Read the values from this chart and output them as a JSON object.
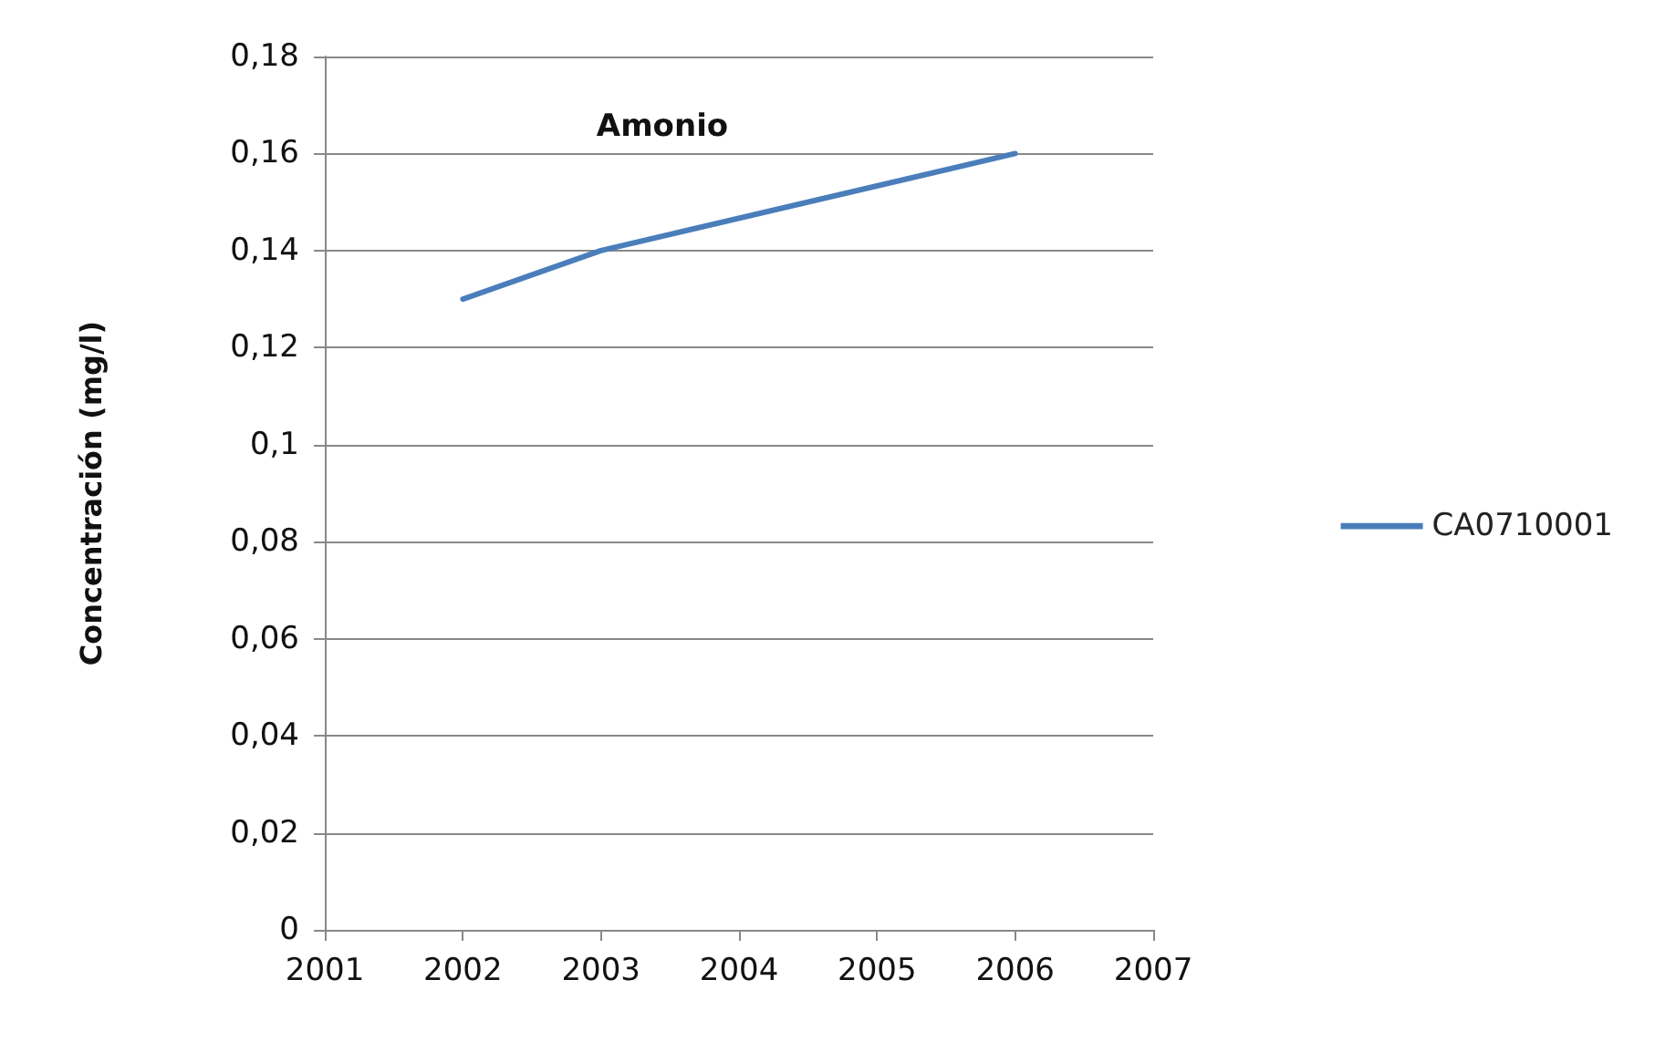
{
  "chart_data": {
    "type": "line",
    "title": "Amonio",
    "ylabel": "Concentración (mg/l)",
    "x": [
      2002,
      2003,
      2006
    ],
    "series": [
      {
        "name": "CA0710001",
        "color": "#4a7ebb",
        "values": [
          0.13,
          0.14,
          0.16
        ]
      }
    ],
    "xlim": [
      2001,
      2007
    ],
    "xticks": [
      2001,
      2002,
      2003,
      2004,
      2005,
      2006,
      2007
    ],
    "ylim": [
      0,
      0.18
    ],
    "yticks": [
      0,
      {
        "value": 0.02,
        "label": "0,02"
      },
      {
        "value": 0.04,
        "label": "0,04"
      },
      {
        "value": 0.06,
        "label": "0,06"
      },
      {
        "value": 0.08,
        "label": "0,08"
      },
      {
        "value": 0.1,
        "label": "0,1"
      },
      {
        "value": 0.12,
        "label": "0,12"
      },
      {
        "value": 0.14,
        "label": "0,14"
      },
      {
        "value": 0.16,
        "label": "0,16"
      },
      {
        "value": 0.18,
        "label": "0,18"
      }
    ],
    "grid": "y",
    "legend": "right",
    "marker": "none",
    "line_style": "solid"
  }
}
